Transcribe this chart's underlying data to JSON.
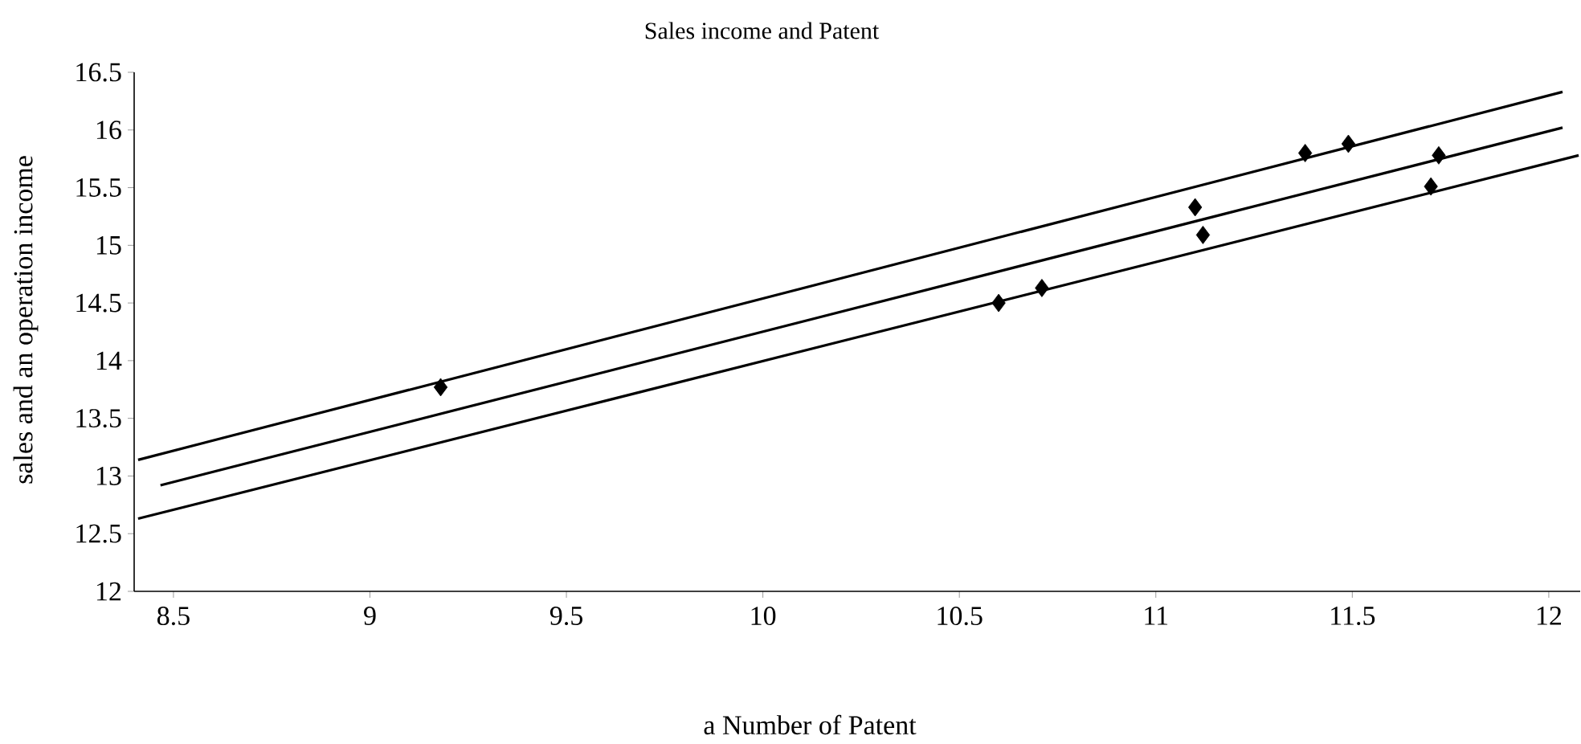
{
  "chart_data": {
    "type": "scatter",
    "title": "Sales income and Patent",
    "xlabel": "a Number of Patent",
    "ylabel": "sales and an operation income",
    "xlim": [
      8.4,
      12.08
    ],
    "ylim": [
      12,
      16.5
    ],
    "xticks": [
      8.5,
      9,
      9.5,
      10,
      10.5,
      11,
      11.5,
      12
    ],
    "yticks": [
      12,
      12.5,
      13,
      13.5,
      14,
      14.5,
      15,
      15.5,
      16,
      16.5
    ],
    "grid": false,
    "series": [
      {
        "marker": "diamond",
        "color": "#000000",
        "x": [
          9.18,
          10.6,
          10.71,
          11.1,
          11.12,
          11.38,
          11.49,
          11.72,
          11.7
        ],
        "values": [
          13.77,
          14.5,
          14.63,
          15.33,
          15.09,
          15.8,
          15.88,
          15.78,
          15.51
        ]
      },
      {
        "type": "line",
        "line_style": "solid",
        "color": "#000000",
        "x": [
          8.41,
          12.035
        ],
        "values": [
          13.14,
          16.33
        ]
      },
      {
        "type": "line",
        "line_style": "solid",
        "color": "#000000",
        "x": [
          8.467,
          12.035
        ],
        "values": [
          12.92,
          16.02
        ]
      },
      {
        "type": "line",
        "line_style": "solid",
        "color": "#000000",
        "x": [
          8.41,
          12.076
        ],
        "values": [
          12.63,
          15.78
        ]
      }
    ]
  }
}
